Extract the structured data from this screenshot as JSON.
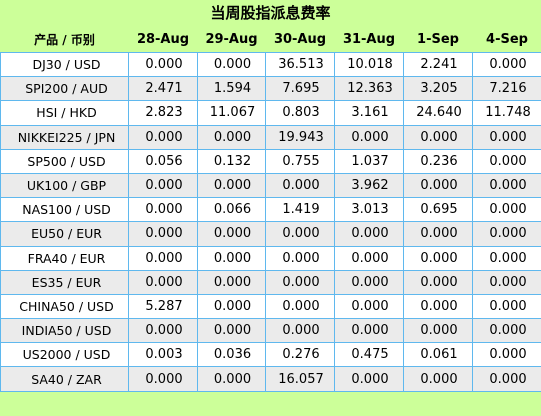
{
  "title": "当周股指派息费率",
  "columns": [
    "产品 / 币别",
    "28-Aug",
    "29-Aug",
    "30-Aug",
    "31-Aug",
    "1-Sep",
    "4-Sep"
  ],
  "rows": [
    {
      "name": "DJ30 / USD",
      "values": [
        "0.000",
        "0.000",
        "36.513",
        "10.018",
        "2.241",
        "0.000"
      ]
    },
    {
      "name": "SPI200 / AUD",
      "values": [
        "2.471",
        "1.594",
        "7.695",
        "12.363",
        "3.205",
        "7.216"
      ]
    },
    {
      "name": "HSI / HKD",
      "values": [
        "2.823",
        "11.067",
        "0.803",
        "3.161",
        "24.640",
        "11.748"
      ]
    },
    {
      "name": "NIKKEI225 / JPN",
      "values": [
        "0.000",
        "0.000",
        "19.943",
        "0.000",
        "0.000",
        "0.000"
      ]
    },
    {
      "name": "SP500 / USD",
      "values": [
        "0.056",
        "0.132",
        "0.755",
        "1.037",
        "0.236",
        "0.000"
      ]
    },
    {
      "name": "UK100 / GBP",
      "values": [
        "0.000",
        "0.000",
        "0.000",
        "3.962",
        "0.000",
        "0.000"
      ]
    },
    {
      "name": "NAS100 / USD",
      "values": [
        "0.000",
        "0.066",
        "1.419",
        "3.013",
        "0.695",
        "0.000"
      ]
    },
    {
      "name": "EU50 / EUR",
      "values": [
        "0.000",
        "0.000",
        "0.000",
        "0.000",
        "0.000",
        "0.000"
      ]
    },
    {
      "name": "FRA40 / EUR",
      "values": [
        "0.000",
        "0.000",
        "0.000",
        "0.000",
        "0.000",
        "0.000"
      ]
    },
    {
      "name": "ES35 / EUR",
      "values": [
        "0.000",
        "0.000",
        "0.000",
        "0.000",
        "0.000",
        "0.000"
      ]
    },
    {
      "name": "CHINA50 / USD",
      "values": [
        "5.287",
        "0.000",
        "0.000",
        "0.000",
        "0.000",
        "0.000"
      ]
    },
    {
      "name": "INDIA50 / USD",
      "values": [
        "0.000",
        "0.000",
        "0.000",
        "0.000",
        "0.000",
        "0.000"
      ]
    },
    {
      "name": "US2000 / USD",
      "values": [
        "0.003",
        "0.036",
        "0.276",
        "0.475",
        "0.061",
        "0.000"
      ]
    },
    {
      "name": "SA40 / ZAR",
      "values": [
        "0.000",
        "0.000",
        "16.057",
        "0.000",
        "0.000",
        "0.000"
      ]
    }
  ],
  "colors": {
    "header_bg": "#ccff99",
    "row_bg": "#ffffff",
    "row_alt_bg": "#ebebeb",
    "grid_line": "#5fb8ee"
  }
}
